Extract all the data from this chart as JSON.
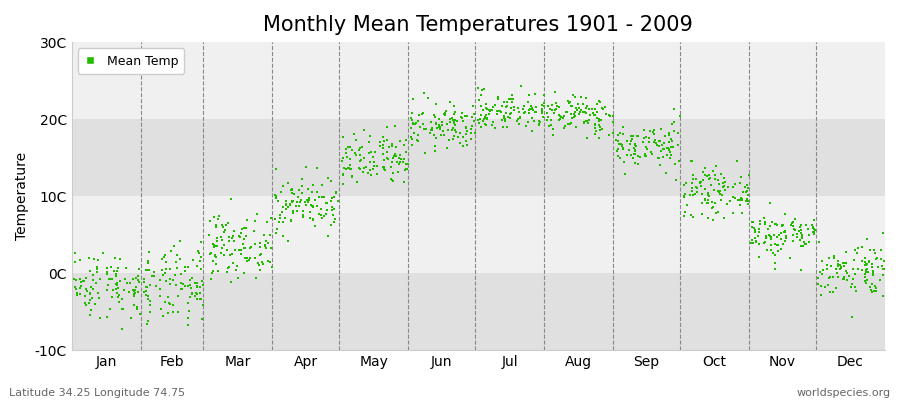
{
  "title": "Monthly Mean Temperatures 1901 - 2009",
  "ylabel": "Temperature",
  "ylim": [
    -10,
    30
  ],
  "yticks": [
    -10,
    0,
    10,
    20,
    30
  ],
  "ytick_labels": [
    "-10C",
    "0C",
    "10C",
    "20C",
    "30C"
  ],
  "dot_color": "#22bb00",
  "dot_size": 3,
  "plot_bg_light": "#f0f0f0",
  "plot_bg_dark": "#e0e0e0",
  "fig_background": "#ffffff",
  "vgrid_color": "#888888",
  "title_fontsize": 15,
  "label_fontsize": 10,
  "tick_fontsize": 10,
  "footnote_left": "Latitude 34.25 Longitude 74.75",
  "footnote_right": "worldspecies.org",
  "legend_label": "Mean Temp",
  "monthly_means": [
    -1.5,
    -1.8,
    3.5,
    9.0,
    14.5,
    19.0,
    21.0,
    20.5,
    16.5,
    10.5,
    5.0,
    0.5
  ],
  "monthly_stds": [
    2.2,
    2.5,
    2.0,
    1.8,
    1.8,
    1.5,
    1.3,
    1.3,
    1.5,
    1.5,
    1.5,
    1.8
  ],
  "n_years": 109,
  "seed": 42,
  "month_names": [
    "Jan",
    "Feb",
    "Mar",
    "Apr",
    "May",
    "Jun",
    "Jul",
    "Aug",
    "Sep",
    "Oct",
    "Nov",
    "Dec"
  ],
  "month_days": [
    31,
    28,
    31,
    30,
    31,
    30,
    31,
    31,
    30,
    31,
    30,
    31
  ]
}
